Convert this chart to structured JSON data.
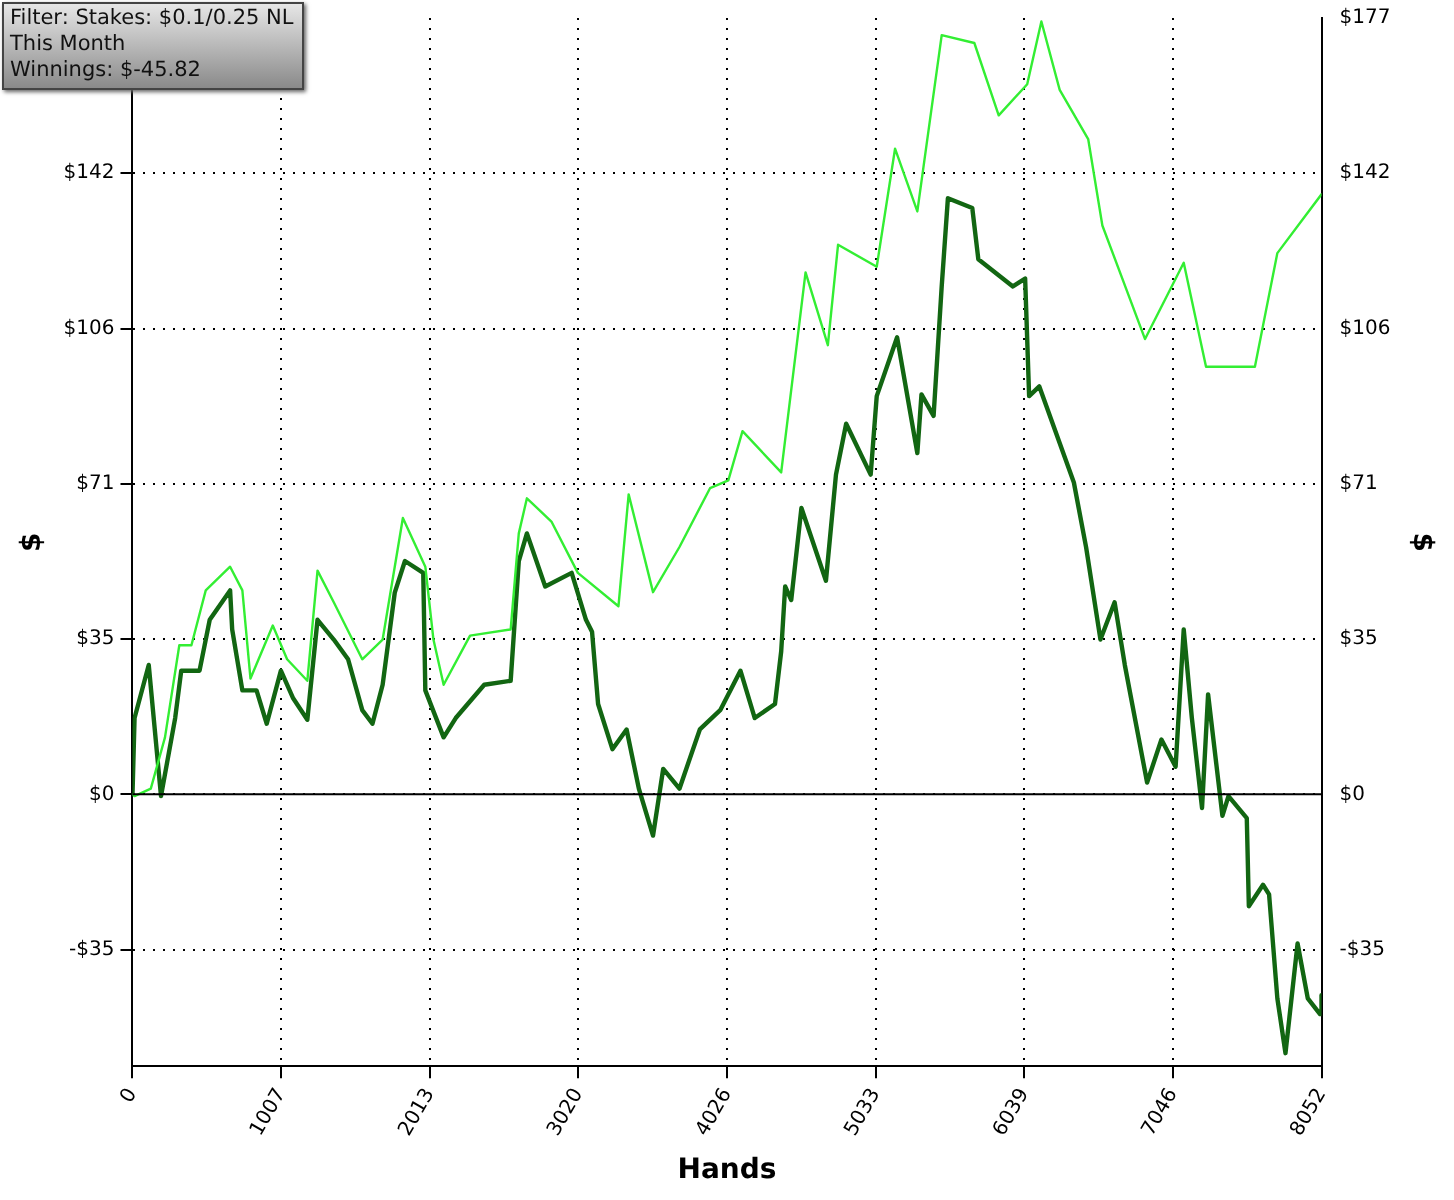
{
  "chart_data": {
    "type": "line",
    "xlabel": "Hands",
    "ylabel": "$",
    "y2label": "$",
    "annotations": [
      "Filter: Stakes: $0.1/0.25 NL",
      "This Month",
      "Winnings: $-45.82"
    ],
    "xlim": [
      0,
      8052
    ],
    "xticks": [
      0,
      1007,
      2013,
      3020,
      4026,
      5033,
      6039,
      7046,
      8052
    ],
    "ylim": [
      -62,
      177
    ],
    "yticks": [
      {
        "value": -35.4,
        "label": "-$35"
      },
      {
        "value": 0,
        "label": "$0"
      },
      {
        "value": 35.4,
        "label": "$35"
      },
      {
        "value": 70.8,
        "label": "$71"
      },
      {
        "value": 106.2,
        "label": "$106"
      },
      {
        "value": 141.6,
        "label": "$142"
      }
    ],
    "y2lim": [
      -62,
      177
    ],
    "y2ticks": [
      {
        "value": -35.4,
        "label": "-$35"
      },
      {
        "value": 0,
        "label": "$0"
      },
      {
        "value": 35.4,
        "label": "$35"
      },
      {
        "value": 70.8,
        "label": "$71"
      },
      {
        "value": 106.2,
        "label": "$106"
      },
      {
        "value": 141.6,
        "label": "$142"
      },
      {
        "value": 177,
        "label": "$177"
      }
    ],
    "grid": true,
    "legend": false,
    "marker": "none",
    "line_style": "solid",
    "ref_lines": [
      {
        "axis": "y",
        "value": 0,
        "color": "#000000"
      }
    ],
    "series": [
      {
        "color": "#33ee33",
        "x": [
          0,
          14,
          124,
          220,
          317,
          399,
          496,
          661,
          744,
          799,
          950,
          1047,
          1184,
          1253,
          1363,
          1556,
          1694,
          1831,
          1983,
          2038,
          2107,
          2286,
          2561,
          2616,
          2671,
          2837,
          3016,
          3291,
          3360,
          3525,
          3704,
          3911,
          4035,
          4131,
          4393,
          4558,
          4709,
          4778,
          5040,
          5164,
          5315,
          5480,
          5701,
          5866,
          6059,
          6155,
          6279,
          6472,
          6568,
          6857,
          7119,
          7270,
          7601,
          7753,
          8052
        ],
        "values": [
          0,
          -0.4,
          1.3,
          13.0,
          34.0,
          34.0,
          46.5,
          51.9,
          46.5,
          26.4,
          38.5,
          30.8,
          25.9,
          51.0,
          43.8,
          30.8,
          35.3,
          63.0,
          51.9,
          35.3,
          25.0,
          36.2,
          37.6,
          59.5,
          67.5,
          62.2,
          50.5,
          42.9,
          68.4,
          46.1,
          56.4,
          69.8,
          71.6,
          82.8,
          73.4,
          119.0,
          102.4,
          125.3,
          120.3,
          147.2,
          132.9,
          173.1,
          171.3,
          154.8,
          161.9,
          176.2,
          160.6,
          149.4,
          129.7,
          103.8,
          121.2,
          97.5,
          97.5,
          123.4,
          136.8
        ]
      },
      {
        "color": "#126612",
        "x": [
          0,
          14,
          110,
          193,
          289,
          330,
          454,
          523,
          661,
          675,
          744,
          840,
          909,
          1005,
          1088,
          1184,
          1253,
          1363,
          1460,
          1556,
          1625,
          1694,
          1776,
          1845,
          1969,
          1983,
          2107,
          2189,
          2382,
          2561,
          2616,
          2671,
          2795,
          2974,
          3071,
          3112,
          3153,
          3250,
          3346,
          3429,
          3525,
          3594,
          3704,
          3842,
          3980,
          4117,
          4214,
          4351,
          4393,
          4420,
          4461,
          4530,
          4696,
          4764,
          4833,
          4999,
          5040,
          5178,
          5315,
          5343,
          5425,
          5480,
          5522,
          5687,
          5728,
          5962,
          6045,
          6072,
          6141,
          6375,
          6458,
          6555,
          6651,
          6720,
          6871,
          6968,
          7064,
          7119,
          7174,
          7243,
          7284,
          7381,
          7422,
          7546,
          7560,
          7656,
          7697,
          7753,
          7808,
          7890,
          7959,
          8042,
          8052
        ],
        "values": [
          0,
          17.4,
          29.5,
          -0.4,
          17.4,
          28.2,
          28.2,
          39.8,
          46.5,
          37.6,
          23.7,
          23.7,
          16.1,
          28.2,
          21.9,
          17.0,
          39.8,
          35.3,
          30.8,
          19.2,
          16.1,
          25.0,
          46.0,
          53.2,
          50.5,
          23.7,
          13.0,
          17.4,
          25.0,
          25.9,
          53.2,
          59.5,
          47.4,
          50.5,
          39.8,
          37.1,
          20.6,
          10.3,
          14.8,
          1.3,
          -9.4,
          5.8,
          1.3,
          14.8,
          19.2,
          28.2,
          17.4,
          20.6,
          32.6,
          47.4,
          44.3,
          65.3,
          48.7,
          72.9,
          84.5,
          72.9,
          90.8,
          104.2,
          77.8,
          91.2,
          86.3,
          115.8,
          135.9,
          133.7,
          122.0,
          115.8,
          117.6,
          90.8,
          93.0,
          71.1,
          56.3,
          35.3,
          43.8,
          29.5,
          2.7,
          12.5,
          6.3,
          37.6,
          17.4,
          -3.1,
          22.8,
          -4.9,
          -0.4,
          -5.4,
          -25.5,
          -20.6,
          -22.8,
          -46.5,
          -59.0,
          -34.0,
          -46.5,
          -50.1,
          -45.8
        ]
      }
    ]
  }
}
